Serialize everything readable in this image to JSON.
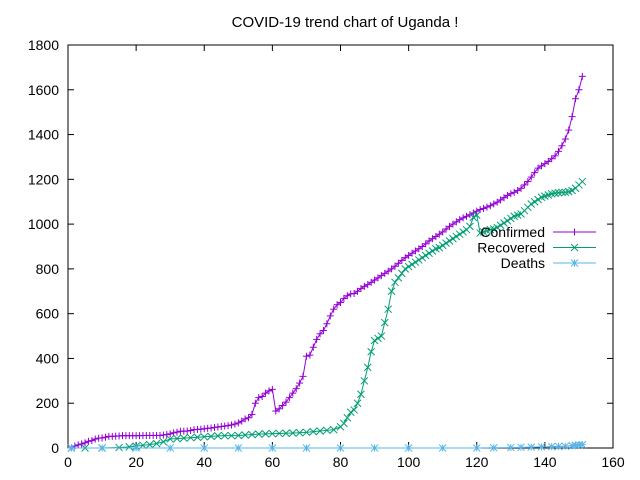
{
  "chart_data": {
    "type": "line",
    "title": "COVID-19 trend chart of Uganda !",
    "xlabel": "",
    "ylabel": "",
    "xlim": [
      0,
      160
    ],
    "ylim": [
      0,
      1800
    ],
    "xticks": [
      0,
      20,
      40,
      60,
      80,
      100,
      120,
      140,
      160
    ],
    "yticks": [
      0,
      200,
      400,
      600,
      800,
      1000,
      1200,
      1400,
      1600,
      1800
    ],
    "grid": false,
    "legend_position": "right",
    "series": [
      {
        "name": "Confirmed",
        "color": "#9400d3",
        "marker": "plus",
        "points": [
          [
            1,
            1
          ],
          [
            2,
            9
          ],
          [
            3,
            14
          ],
          [
            4,
            18
          ],
          [
            5,
            23
          ],
          [
            6,
            30
          ],
          [
            7,
            33
          ],
          [
            8,
            40
          ],
          [
            9,
            44
          ],
          [
            10,
            45
          ],
          [
            11,
            48
          ],
          [
            12,
            52
          ],
          [
            13,
            52
          ],
          [
            14,
            53
          ],
          [
            15,
            54
          ],
          [
            16,
            55
          ],
          [
            17,
            55
          ],
          [
            18,
            55
          ],
          [
            19,
            55
          ],
          [
            20,
            55
          ],
          [
            21,
            55
          ],
          [
            22,
            56
          ],
          [
            23,
            56
          ],
          [
            24,
            56
          ],
          [
            25,
            56
          ],
          [
            26,
            56
          ],
          [
            27,
            56
          ],
          [
            28,
            58
          ],
          [
            29,
            60
          ],
          [
            30,
            63
          ],
          [
            31,
            68
          ],
          [
            32,
            71
          ],
          [
            33,
            75
          ],
          [
            34,
            75
          ],
          [
            35,
            76
          ],
          [
            36,
            78
          ],
          [
            37,
            82
          ],
          [
            38,
            83
          ],
          [
            39,
            84
          ],
          [
            40,
            86
          ],
          [
            41,
            88
          ],
          [
            42,
            89
          ],
          [
            43,
            92
          ],
          [
            44,
            94
          ],
          [
            45,
            96
          ],
          [
            46,
            98
          ],
          [
            47,
            100
          ],
          [
            48,
            103
          ],
          [
            49,
            107
          ],
          [
            50,
            112
          ],
          [
            51,
            120
          ],
          [
            52,
            130
          ],
          [
            53,
            135
          ],
          [
            54,
            150
          ],
          [
            55,
            200
          ],
          [
            56,
            225
          ],
          [
            57,
            230
          ],
          [
            58,
            245
          ],
          [
            59,
            255
          ],
          [
            60,
            262
          ],
          [
            61,
            165
          ],
          [
            62,
            175
          ],
          [
            63,
            190
          ],
          [
            64,
            205
          ],
          [
            65,
            225
          ],
          [
            66,
            245
          ],
          [
            67,
            265
          ],
          [
            68,
            290
          ],
          [
            69,
            320
          ],
          [
            70,
            410
          ],
          [
            71,
            415
          ],
          [
            72,
            450
          ],
          [
            73,
            485
          ],
          [
            74,
            510
          ],
          [
            75,
            525
          ],
          [
            76,
            555
          ],
          [
            77,
            590
          ],
          [
            78,
            620
          ],
          [
            79,
            640
          ],
          [
            80,
            650
          ],
          [
            81,
            668
          ],
          [
            82,
            680
          ],
          [
            83,
            688
          ],
          [
            84,
            690
          ],
          [
            85,
            700
          ],
          [
            86,
            712
          ],
          [
            87,
            722
          ],
          [
            88,
            730
          ],
          [
            89,
            740
          ],
          [
            90,
            750
          ],
          [
            91,
            760
          ],
          [
            92,
            770
          ],
          [
            93,
            780
          ],
          [
            94,
            790
          ],
          [
            95,
            800
          ],
          [
            96,
            812
          ],
          [
            97,
            825
          ],
          [
            98,
            838
          ],
          [
            99,
            850
          ],
          [
            100,
            860
          ],
          [
            101,
            870
          ],
          [
            102,
            880
          ],
          [
            103,
            890
          ],
          [
            104,
            900
          ],
          [
            105,
            912
          ],
          [
            106,
            925
          ],
          [
            107,
            935
          ],
          [
            108,
            945
          ],
          [
            109,
            955
          ],
          [
            110,
            965
          ],
          [
            111,
            978
          ],
          [
            112,
            990
          ],
          [
            113,
            1000
          ],
          [
            114,
            1010
          ],
          [
            115,
            1020
          ],
          [
            116,
            1028
          ],
          [
            117,
            1035
          ],
          [
            118,
            1042
          ],
          [
            119,
            1050
          ],
          [
            120,
            1058
          ],
          [
            121,
            1065
          ],
          [
            122,
            1070
          ],
          [
            123,
            1076
          ],
          [
            124,
            1082
          ],
          [
            125,
            1090
          ],
          [
            126,
            1098
          ],
          [
            127,
            1108
          ],
          [
            128,
            1118
          ],
          [
            129,
            1128
          ],
          [
            130,
            1136
          ],
          [
            131,
            1142
          ],
          [
            132,
            1150
          ],
          [
            133,
            1160
          ],
          [
            134,
            1175
          ],
          [
            135,
            1190
          ],
          [
            136,
            1210
          ],
          [
            137,
            1230
          ],
          [
            138,
            1250
          ],
          [
            139,
            1260
          ],
          [
            140,
            1270
          ],
          [
            141,
            1280
          ],
          [
            142,
            1292
          ],
          [
            143,
            1305
          ],
          [
            144,
            1325
          ],
          [
            145,
            1350
          ],
          [
            146,
            1380
          ],
          [
            147,
            1420
          ],
          [
            148,
            1480
          ],
          [
            149,
            1560
          ],
          [
            150,
            1600
          ],
          [
            151,
            1660
          ]
        ]
      },
      {
        "name": "Recovered",
        "color": "#009e73",
        "marker": "cross",
        "points": [
          [
            1,
            0
          ],
          [
            5,
            0
          ],
          [
            10,
            0
          ],
          [
            15,
            2
          ],
          [
            18,
            5
          ],
          [
            20,
            8
          ],
          [
            22,
            12
          ],
          [
            24,
            15
          ],
          [
            26,
            20
          ],
          [
            28,
            28
          ],
          [
            30,
            40
          ],
          [
            32,
            42
          ],
          [
            34,
            44
          ],
          [
            36,
            46
          ],
          [
            38,
            48
          ],
          [
            40,
            50
          ],
          [
            42,
            52
          ],
          [
            44,
            54
          ],
          [
            46,
            55
          ],
          [
            48,
            55
          ],
          [
            50,
            56
          ],
          [
            52,
            58
          ],
          [
            54,
            60
          ],
          [
            56,
            62
          ],
          [
            58,
            63
          ],
          [
            60,
            64
          ],
          [
            62,
            65
          ],
          [
            64,
            66
          ],
          [
            66,
            67
          ],
          [
            68,
            68
          ],
          [
            70,
            70
          ],
          [
            72,
            73
          ],
          [
            74,
            76
          ],
          [
            76,
            79
          ],
          [
            78,
            82
          ],
          [
            80,
            95
          ],
          [
            81,
            110
          ],
          [
            82,
            135
          ],
          [
            83,
            160
          ],
          [
            84,
            170
          ],
          [
            85,
            200
          ],
          [
            86,
            240
          ],
          [
            87,
            300
          ],
          [
            88,
            360
          ],
          [
            89,
            430
          ],
          [
            90,
            480
          ],
          [
            91,
            490
          ],
          [
            92,
            500
          ],
          [
            93,
            560
          ],
          [
            94,
            620
          ],
          [
            95,
            700
          ],
          [
            96,
            740
          ],
          [
            97,
            760
          ],
          [
            98,
            780
          ],
          [
            99,
            800
          ],
          [
            100,
            810
          ],
          [
            101,
            820
          ],
          [
            102,
            830
          ],
          [
            103,
            840
          ],
          [
            104,
            850
          ],
          [
            105,
            860
          ],
          [
            106,
            870
          ],
          [
            107,
            880
          ],
          [
            108,
            890
          ],
          [
            109,
            895
          ],
          [
            110,
            905
          ],
          [
            111,
            915
          ],
          [
            112,
            925
          ],
          [
            113,
            935
          ],
          [
            114,
            945
          ],
          [
            115,
            955
          ],
          [
            116,
            965
          ],
          [
            117,
            975
          ],
          [
            118,
            990
          ],
          [
            119,
            1030
          ],
          [
            120,
            1040
          ],
          [
            121,
            960
          ],
          [
            122,
            965
          ],
          [
            123,
            970
          ],
          [
            124,
            975
          ],
          [
            125,
            978
          ],
          [
            126,
            985
          ],
          [
            127,
            995
          ],
          [
            128,
            1005
          ],
          [
            129,
            1015
          ],
          [
            130,
            1025
          ],
          [
            131,
            1035
          ],
          [
            132,
            1040
          ],
          [
            133,
            1045
          ],
          [
            134,
            1060
          ],
          [
            135,
            1075
          ],
          [
            136,
            1090
          ],
          [
            137,
            1100
          ],
          [
            138,
            1110
          ],
          [
            139,
            1120
          ],
          [
            140,
            1125
          ],
          [
            141,
            1130
          ],
          [
            142,
            1135
          ],
          [
            143,
            1138
          ],
          [
            144,
            1140
          ],
          [
            145,
            1142
          ],
          [
            146,
            1142
          ],
          [
            147,
            1145
          ],
          [
            148,
            1150
          ],
          [
            149,
            1160
          ],
          [
            150,
            1175
          ],
          [
            151,
            1190
          ]
        ]
      },
      {
        "name": "Deaths",
        "color": "#56b4e9",
        "marker": "star",
        "points": [
          [
            1,
            0
          ],
          [
            10,
            0
          ],
          [
            20,
            0
          ],
          [
            30,
            0
          ],
          [
            40,
            0
          ],
          [
            50,
            0
          ],
          [
            60,
            0
          ],
          [
            70,
            0
          ],
          [
            80,
            0
          ],
          [
            90,
            0
          ],
          [
            100,
            0
          ],
          [
            110,
            0
          ],
          [
            120,
            0
          ],
          [
            125,
            1
          ],
          [
            130,
            2
          ],
          [
            133,
            3
          ],
          [
            136,
            4
          ],
          [
            139,
            5
          ],
          [
            142,
            6
          ],
          [
            144,
            7
          ],
          [
            146,
            8
          ],
          [
            148,
            10
          ],
          [
            149,
            12
          ],
          [
            150,
            14
          ],
          [
            151,
            15
          ]
        ]
      }
    ]
  }
}
